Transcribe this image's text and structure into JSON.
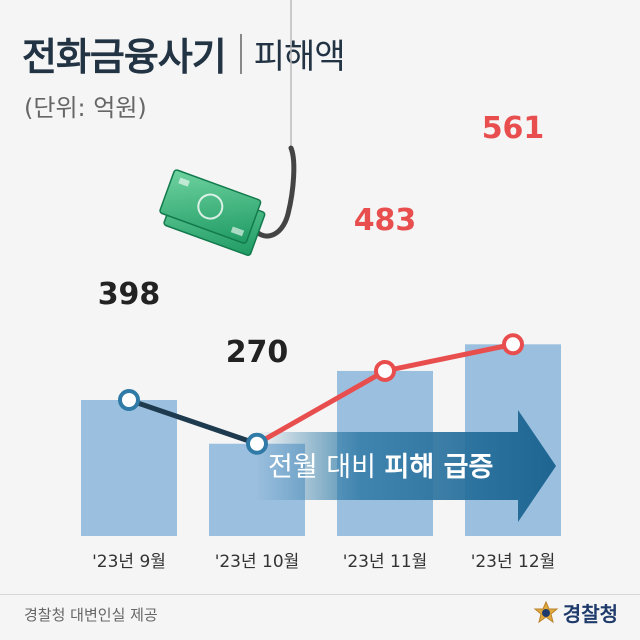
{
  "header": {
    "title": "전화금융사기",
    "subtitle": "피해액",
    "unit": "(단위: 억원)"
  },
  "chart_data": {
    "type": "bar",
    "categories": [
      "'23년 9월",
      "'23년 10월",
      "'23년 11월",
      "'23년 12월"
    ],
    "values": [
      398,
      270,
      483,
      561
    ],
    "data_labels": [
      "398",
      "270",
      "483",
      "561"
    ],
    "ylim": [
      0,
      700
    ],
    "grid": false,
    "overlay_line": {
      "type": "line",
      "values": [
        398,
        270,
        483,
        561
      ]
    },
    "annotation": {
      "text_normal": "전월 대비 ",
      "text_bold": "피해 급증"
    },
    "colors": {
      "bar": "#9bbfde",
      "line_decline": "#1d3a4f",
      "line_rise": "#e84e4e",
      "arrow": "#2f7aa6",
      "label_dark": "#222222",
      "label_red": "#e84e4e"
    }
  },
  "footer": {
    "credit": "경찰청 대변인실 제공",
    "logo_text": "경찰청"
  }
}
